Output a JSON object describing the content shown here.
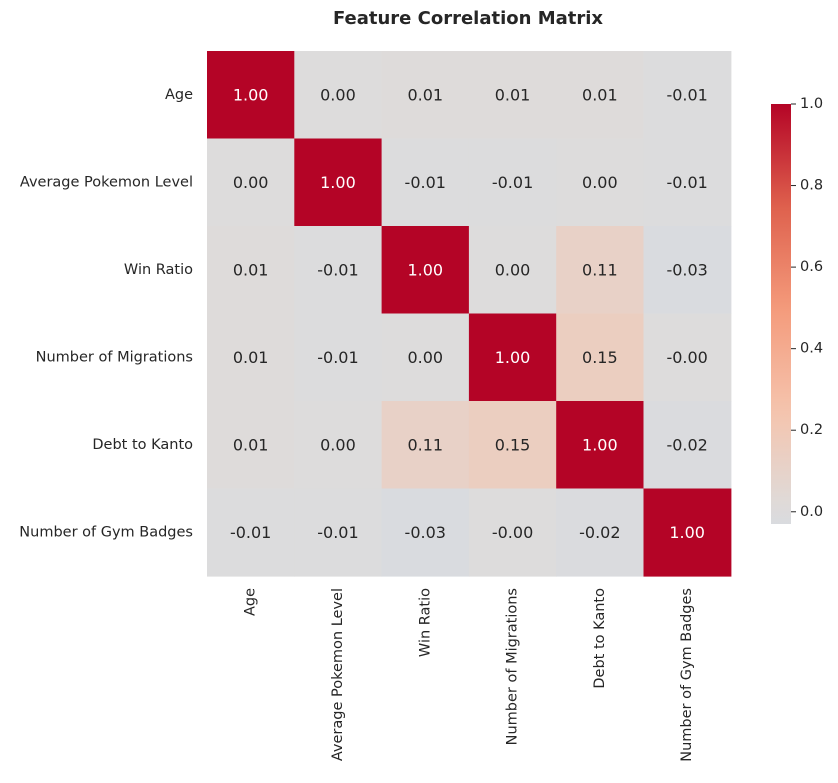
{
  "chart_data": {
    "type": "heatmap",
    "title": "Feature Correlation Matrix",
    "labels": [
      "Age",
      "Average Pokemon Level",
      "Win Ratio",
      "Number of Migrations",
      "Debt to Kanto",
      "Number of Gym Badges"
    ],
    "matrix": [
      [
        1.0,
        0.0,
        0.01,
        0.01,
        0.01,
        -0.01
      ],
      [
        0.0,
        1.0,
        -0.01,
        -0.01,
        0.0,
        -0.01
      ],
      [
        0.01,
        -0.01,
        1.0,
        0.0,
        0.11,
        -0.03
      ],
      [
        0.01,
        -0.01,
        0.0,
        1.0,
        0.15,
        -0.0
      ],
      [
        0.01,
        0.0,
        0.11,
        0.15,
        1.0,
        -0.02
      ],
      [
        -0.01,
        -0.01,
        -0.03,
        -0.0,
        -0.02,
        1.0
      ]
    ],
    "value_format": "2 decimals",
    "colormap": "coolwarm",
    "color_range": [
      -1,
      1
    ],
    "colorbar": {
      "position": "right",
      "range": [
        -0.03,
        1.0
      ],
      "ticks": [
        "0.0",
        "0.2",
        "0.4",
        "0.6",
        "0.8",
        "1.0"
      ]
    }
  }
}
